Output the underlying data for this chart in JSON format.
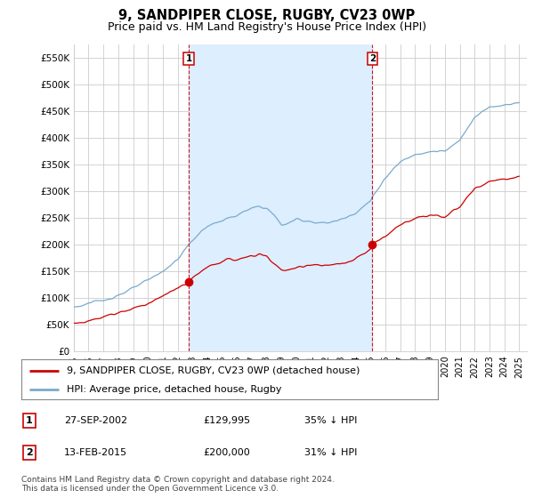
{
  "title": "9, SANDPIPER CLOSE, RUGBY, CV23 0WP",
  "subtitle": "Price paid vs. HM Land Registry's House Price Index (HPI)",
  "ylabel_ticks": [
    "£0",
    "£50K",
    "£100K",
    "£150K",
    "£200K",
    "£250K",
    "£300K",
    "£350K",
    "£400K",
    "£450K",
    "£500K",
    "£550K"
  ],
  "ytick_values": [
    0,
    50000,
    100000,
    150000,
    200000,
    250000,
    300000,
    350000,
    400000,
    450000,
    500000,
    550000
  ],
  "ylim": [
    0,
    575000
  ],
  "xlim_start": 1995.0,
  "xlim_end": 2025.5,
  "purchase1_x": 2002.75,
  "purchase1_y": 129995,
  "purchase2_x": 2015.12,
  "purchase2_y": 200000,
  "line_property_color": "#cc0000",
  "line_hpi_color": "#7aaacc",
  "shade_color": "#ddeeff",
  "vline_color": "#cc0000",
  "background_color": "#ffffff",
  "grid_color": "#cccccc",
  "legend_label_property": "9, SANDPIPER CLOSE, RUGBY, CV23 0WP (detached house)",
  "legend_label_hpi": "HPI: Average price, detached house, Rugby",
  "table_rows": [
    {
      "num": "1",
      "date": "27-SEP-2002",
      "price": "£129,995",
      "hpi": "35% ↓ HPI"
    },
    {
      "num": "2",
      "date": "13-FEB-2015",
      "price": "£200,000",
      "hpi": "31% ↓ HPI"
    }
  ],
  "footer": "Contains HM Land Registry data © Crown copyright and database right 2024.\nThis data is licensed under the Open Government Licence v3.0.",
  "title_fontsize": 10.5,
  "subtitle_fontsize": 9,
  "tick_fontsize": 7.5,
  "legend_fontsize": 8,
  "footer_fontsize": 6.5
}
